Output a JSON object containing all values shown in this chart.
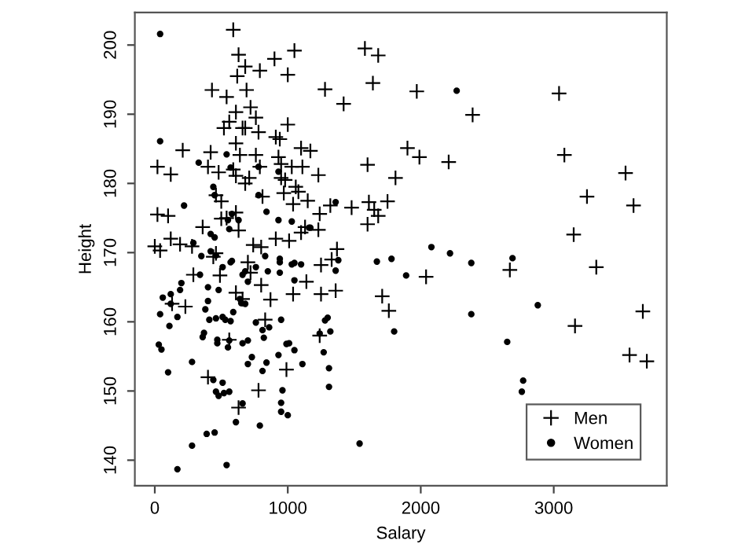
{
  "chart_data": {
    "type": "scatter",
    "xlabel": "Salary",
    "ylabel": "Height",
    "xlim": [
      -150,
      3850
    ],
    "ylim": [
      136.3,
      204.7
    ],
    "xticks": [
      0,
      1000,
      2000,
      3000
    ],
    "yticks": [
      140,
      150,
      160,
      170,
      180,
      190,
      200
    ],
    "grid": false,
    "legend": "bottom right",
    "series": [
      {
        "name": "Men",
        "color": "#000000",
        "marker": "cross",
        "x": [
          590,
          630,
          680,
          620,
          790,
          900,
          1050,
          1000,
          430,
          540,
          690,
          720,
          610,
          760,
          560,
          520,
          660,
          680,
          780,
          1000,
          910,
          940,
          610,
          210,
          420,
          640,
          760,
          930,
          1100,
          1170,
          20,
          120,
          400,
          480,
          590,
          610,
          710,
          680,
          790,
          950,
          1030,
          1110,
          950,
          980,
          1060,
          1080,
          970,
          1150,
          1040,
          810,
          460,
          500,
          20,
          100,
          500,
          610,
          540,
          360,
          630,
          1130,
          1100,
          120,
          190,
          0,
          40,
          280,
          740,
          800,
          910,
          1010,
          440,
          460,
          700,
          720,
          490,
          290,
          800,
          610,
          660,
          870,
          1040,
          1140,
          130,
          230,
          830,
          560,
          990,
          400,
          780,
          630,
          1580,
          1680,
          1640,
          1280,
          1420,
          1970,
          2390,
          1900,
          1990,
          2210,
          1600,
          1810,
          1230,
          1320,
          1480,
          1610,
          1650,
          1680,
          1750,
          1600,
          1240,
          1230,
          1370,
          1330,
          1250,
          1250,
          1360,
          1710,
          1760,
          2040,
          2670,
          1240,
          3040,
          3080,
          3540,
          3250,
          3600,
          3150,
          3320,
          3670,
          3160,
          3570,
          3700
        ],
        "values": [
          202.2,
          198.6,
          196.9,
          195.5,
          196.3,
          198.0,
          199.2,
          195.7,
          193.5,
          192.5,
          193.5,
          191.0,
          190.3,
          189.5,
          188.9,
          188.0,
          188.0,
          188.0,
          187.4,
          188.5,
          186.7,
          186.4,
          185.8,
          184.8,
          184.5,
          184.1,
          184.1,
          183.8,
          185.1,
          184.7,
          182.4,
          181.3,
          182.4,
          181.6,
          182.0,
          181.1,
          180.8,
          180.0,
          182.4,
          182.8,
          182.4,
          182.4,
          180.8,
          180.5,
          179.5,
          178.8,
          178.6,
          177.5,
          177.0,
          178.1,
          178.3,
          177.4,
          175.5,
          175.3,
          174.9,
          175.8,
          175.0,
          173.7,
          173.2,
          173.7,
          172.9,
          172.0,
          171.2,
          170.9,
          170.3,
          170.9,
          171.1,
          170.8,
          172.0,
          171.7,
          169.4,
          169.9,
          168.6,
          167.1,
          166.7,
          166.8,
          165.3,
          164.2,
          163.3,
          163.2,
          164.0,
          165.8,
          162.6,
          162.2,
          160.3,
          157.4,
          153.1,
          152.0,
          150.1,
          147.6,
          199.5,
          198.5,
          194.5,
          193.6,
          191.5,
          193.3,
          189.9,
          185.1,
          183.8,
          183.1,
          182.7,
          180.8,
          181.2,
          176.8,
          176.5,
          177.3,
          176.2,
          175.3,
          177.4,
          174.1,
          175.6,
          173.3,
          170.5,
          169.0,
          168.2,
          164.0,
          164.5,
          163.7,
          161.6,
          166.5,
          167.5,
          158.0,
          193.0,
          184.1,
          181.5,
          178.1,
          176.8,
          172.6,
          167.9,
          161.5,
          159.4,
          155.2,
          154.3
        ]
      },
      {
        "name": "Women",
        "color": "#000000",
        "marker": "circle",
        "x": [
          40,
          40,
          330,
          540,
          570,
          780,
          930,
          440,
          450,
          780,
          220,
          580,
          550,
          630,
          560,
          840,
          930,
          1030,
          1170,
          420,
          450,
          290,
          350,
          420,
          460,
          580,
          830,
          940,
          1030,
          1100,
          570,
          510,
          340,
          680,
          660,
          760,
          850,
          940,
          940,
          1050,
          1050,
          200,
          60,
          120,
          190,
          400,
          480,
          700,
          640,
          650,
          680,
          400,
          120,
          170,
          40,
          380,
          410,
          460,
          510,
          530,
          570,
          590,
          760,
          810,
          860,
          950,
          110,
          370,
          360,
          470,
          470,
          560,
          550,
          660,
          700,
          820,
          1010,
          1050,
          30,
          50,
          730,
          700,
          840,
          810,
          930,
          1110,
          280,
          100,
          440,
          510,
          460,
          480,
          520,
          560,
          960,
          950,
          950,
          1000,
          660,
          610,
          790,
          390,
          450,
          280,
          170,
          540,
          2270,
          1360,
          1160,
          1380,
          1360,
          1670,
          1780,
          2080,
          2220,
          2380,
          2690,
          1890,
          2380,
          1300,
          1280,
          1320,
          1240,
          1800,
          990,
          1270,
          1310,
          1310,
          1540,
          2650,
          2880,
          2770,
          2760
        ],
        "values": [
          201.6,
          186.1,
          183.0,
          184.2,
          182.3,
          182.4,
          181.7,
          179.5,
          178.3,
          178.3,
          176.8,
          175.6,
          174.7,
          174.7,
          173.4,
          175.9,
          174.7,
          174.5,
          173.6,
          172.7,
          172.2,
          171.4,
          169.5,
          170.2,
          169.6,
          168.8,
          169.5,
          169.1,
          168.3,
          168.3,
          168.6,
          167.9,
          166.8,
          167.3,
          166.8,
          167.9,
          167.3,
          168.6,
          167.1,
          168.5,
          166.0,
          165.6,
          163.5,
          164.0,
          164.6,
          165.0,
          164.6,
          165.8,
          163.3,
          162.7,
          162.6,
          163.0,
          162.6,
          160.7,
          161.1,
          161.8,
          160.3,
          160.5,
          160.7,
          160.3,
          160.1,
          161.4,
          159.9,
          158.8,
          159.2,
          160.3,
          159.4,
          158.4,
          157.8,
          157.4,
          156.9,
          157.3,
          156.3,
          156.9,
          157.3,
          157.7,
          156.9,
          155.9,
          156.7,
          156.0,
          154.9,
          153.9,
          154.1,
          152.9,
          155.2,
          153.9,
          154.2,
          152.7,
          151.6,
          151.2,
          149.9,
          149.3,
          149.7,
          149.9,
          150.1,
          148.3,
          147.0,
          146.5,
          148.2,
          145.5,
          145.0,
          143.8,
          144.0,
          142.1,
          138.7,
          139.3,
          193.4,
          177.3,
          173.6,
          168.9,
          167.4,
          168.7,
          169.1,
          170.8,
          169.9,
          168.5,
          169.2,
          166.7,
          161.1,
          160.6,
          160.2,
          158.6,
          158.3,
          158.6,
          156.8,
          155.6,
          153.3,
          150.6,
          142.4,
          157.1,
          162.4,
          151.5,
          149.9
        ]
      }
    ]
  }
}
